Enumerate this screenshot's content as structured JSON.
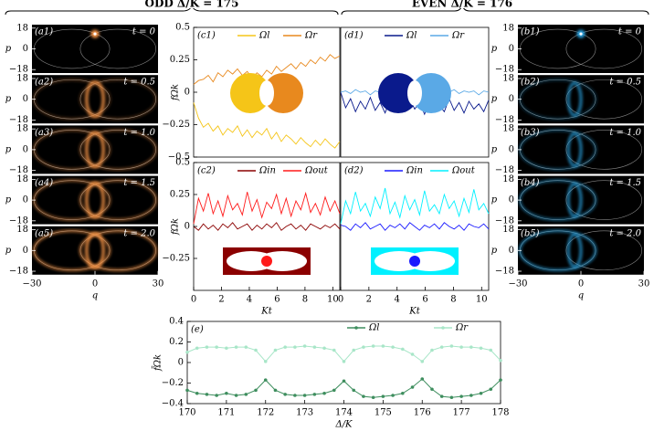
{
  "headers": {
    "odd": "ODD Δ/K = 175",
    "even": "EVEN Δ/K = 176"
  },
  "chart_data": [
    {
      "type": "phase",
      "label": "(a1)",
      "annotation": "t = 0",
      "ylabel": "p",
      "xlim": [
        -30,
        30
      ],
      "ylim": [
        -21,
        21
      ],
      "yticks": [
        {
          "value": -18,
          "label": "−18"
        },
        0,
        18
      ],
      "color": "#ff9a4a"
    },
    {
      "type": "phase",
      "label": "(a2)",
      "annotation": "t = 0.5",
      "ylabel": "p",
      "xlim": [
        -30,
        30
      ],
      "ylim": [
        -21,
        21
      ],
      "yticks": [
        {
          "value": -18,
          "label": "−18"
        },
        0,
        18
      ],
      "color": "#ff9a4a"
    },
    {
      "type": "phase",
      "label": "(a3)",
      "annotation": "t = 1.0",
      "ylabel": "p",
      "xlim": [
        -30,
        30
      ],
      "ylim": [
        -21,
        21
      ],
      "yticks": [
        {
          "value": -18,
          "label": "−18"
        },
        0,
        18
      ],
      "color": "#ff9a4a"
    },
    {
      "type": "phase",
      "label": "(a4)",
      "annotation": "t = 1.5",
      "ylabel": "p",
      "xlim": [
        -30,
        30
      ],
      "ylim": [
        -21,
        21
      ],
      "yticks": [
        {
          "value": -18,
          "label": "−18"
        },
        0,
        18
      ],
      "color": "#ff9a4a"
    },
    {
      "type": "phase",
      "label": "(a5)",
      "annotation": "t = 2.0",
      "ylabel": "p",
      "xlabel": "q",
      "xlim": [
        -30,
        30
      ],
      "ylim": [
        -21,
        21
      ],
      "yticks": [
        {
          "value": -18,
          "label": "−18"
        },
        0,
        18
      ],
      "xticks": [
        {
          "value": -30,
          "label": "−30"
        },
        0,
        30
      ],
      "color": "#ff9a4a"
    },
    {
      "type": "phase",
      "label": "(b1)",
      "annotation": "t = 0",
      "ylabel": "p",
      "xlim": [
        -30,
        30
      ],
      "ylim": [
        -21,
        21
      ],
      "yticks": [
        {
          "value": -18,
          "label": "−18"
        },
        0,
        18
      ],
      "color": "#2aa8e8"
    },
    {
      "type": "phase",
      "label": "(b2)",
      "annotation": "t = 0.5",
      "ylabel": "p",
      "xlim": [
        -30,
        30
      ],
      "ylim": [
        -21,
        21
      ],
      "yticks": [
        {
          "value": -18,
          "label": "−18"
        },
        0,
        18
      ],
      "color": "#2aa8e8"
    },
    {
      "type": "phase",
      "label": "(b3)",
      "annotation": "t = 1.0",
      "ylabel": "p",
      "xlim": [
        -30,
        30
      ],
      "ylim": [
        -21,
        21
      ],
      "yticks": [
        {
          "value": -18,
          "label": "−18"
        },
        0,
        18
      ],
      "color": "#2aa8e8"
    },
    {
      "type": "phase",
      "label": "(b4)",
      "annotation": "t = 1.5",
      "ylabel": "p",
      "xlim": [
        -30,
        30
      ],
      "ylim": [
        -21,
        21
      ],
      "yticks": [
        {
          "value": -18,
          "label": "−18"
        },
        0,
        18
      ],
      "color": "#2aa8e8"
    },
    {
      "type": "phase",
      "label": "(b5)",
      "annotation": "t = 2.0",
      "ylabel": "p",
      "xlabel": "q",
      "xlim": [
        -30,
        30
      ],
      "ylim": [
        -21,
        21
      ],
      "yticks": [
        {
          "value": -18,
          "label": "−18"
        },
        0,
        18
      ],
      "xticks": [
        {
          "value": -30,
          "label": "−30"
        },
        0,
        30
      ],
      "color": "#2aa8e8"
    },
    {
      "type": "line",
      "label": "(c1)",
      "ylabel": "fΩk",
      "xlim": [
        0,
        10.5
      ],
      "ylim": [
        -0.5,
        0.5
      ],
      "yticks": [
        {
          "value": -0.5,
          "label": "−0.5"
        },
        {
          "value": -0.25,
          "label": "−0.25"
        },
        0,
        0.25,
        0.5
      ],
      "x": [
        0,
        0.35,
        0.7,
        1.05,
        1.4,
        1.75,
        2.1,
        2.45,
        2.8,
        3.15,
        3.5,
        3.85,
        4.2,
        4.55,
        4.9,
        5.25,
        5.6,
        5.95,
        6.3,
        6.65,
        7,
        7.35,
        7.7,
        8.05,
        8.4,
        8.75,
        9.1,
        9.45,
        9.8,
        10.15,
        10.5
      ],
      "series": [
        {
          "name": "Ωl",
          "color": "#f5c518",
          "values": [
            -0.08,
            -0.2,
            -0.27,
            -0.24,
            -0.3,
            -0.26,
            -0.33,
            -0.28,
            -0.31,
            -0.26,
            -0.34,
            -0.29,
            -0.35,
            -0.3,
            -0.33,
            -0.28,
            -0.36,
            -0.31,
            -0.38,
            -0.33,
            -0.36,
            -0.4,
            -0.35,
            -0.39,
            -0.42,
            -0.37,
            -0.41,
            -0.36,
            -0.4,
            -0.43,
            -0.38
          ]
        },
        {
          "name": "Ωr",
          "color": "#e8891e",
          "values": [
            0.06,
            0.09,
            0.1,
            0.13,
            0.08,
            0.15,
            0.12,
            0.17,
            0.14,
            0.18,
            0.13,
            0.16,
            0.11,
            0.15,
            0.12,
            0.17,
            0.14,
            0.2,
            0.16,
            0.19,
            0.22,
            0.18,
            0.23,
            0.2,
            0.25,
            0.22,
            0.27,
            0.24,
            0.29,
            0.26,
            0.28
          ]
        }
      ]
    },
    {
      "type": "line",
      "label": "(d1)",
      "xlim": [
        0,
        10.5
      ],
      "ylim": [
        -0.5,
        0.5
      ],
      "x": [
        0,
        0.35,
        0.7,
        1.05,
        1.4,
        1.75,
        2.1,
        2.45,
        2.8,
        3.15,
        3.5,
        3.85,
        4.2,
        4.55,
        4.9,
        5.25,
        5.6,
        5.95,
        6.3,
        6.65,
        7,
        7.35,
        7.7,
        8.05,
        8.4,
        8.75,
        9.1,
        9.45,
        9.8,
        10.15,
        10.5
      ],
      "series": [
        {
          "name": "Ωl",
          "color": "#0a1a8c",
          "values": [
            0,
            -0.12,
            -0.05,
            -0.15,
            -0.07,
            -0.13,
            -0.04,
            -0.14,
            -0.08,
            -0.16,
            -0.06,
            -0.12,
            -0.09,
            -0.15,
            -0.05,
            -0.13,
            -0.08,
            -0.17,
            -0.06,
            -0.12,
            -0.1,
            -0.15,
            -0.05,
            -0.14,
            -0.08,
            -0.16,
            -0.07,
            -0.13,
            -0.09,
            -0.15,
            -0.06
          ]
        },
        {
          "name": "Ωr",
          "color": "#5aa9e6",
          "values": [
            0,
            0.01,
            -0.01,
            0.02,
            0,
            0.01,
            -0.02,
            0.01,
            0,
            0.02,
            -0.01,
            0.01,
            0,
            -0.01,
            0.02,
            0,
            0.01,
            -0.01,
            0.02,
            0,
            -0.01,
            0.01,
            0,
            0.02,
            -0.01,
            0.01,
            0,
            0.01,
            -0.02,
            0.01,
            0
          ]
        }
      ]
    },
    {
      "type": "line",
      "label": "(c2)",
      "ylabel": "fΩk",
      "xlabel": "Kt",
      "xlim": [
        0,
        10.5
      ],
      "ylim": [
        -0.5,
        0.5
      ],
      "yticks": [
        {
          "value": -0.25,
          "label": "−0.25"
        },
        0,
        0.25,
        0.5
      ],
      "xticks": [
        0,
        2,
        4,
        6,
        8,
        10
      ],
      "x": [
        0,
        0.35,
        0.7,
        1.05,
        1.4,
        1.75,
        2.1,
        2.45,
        2.8,
        3.15,
        3.5,
        3.85,
        4.2,
        4.55,
        4.9,
        5.25,
        5.6,
        5.95,
        6.3,
        6.65,
        7,
        7.35,
        7.7,
        8.05,
        8.4,
        8.75,
        9.1,
        9.45,
        9.8,
        10.15,
        10.5
      ],
      "series": [
        {
          "name": "Ωin",
          "color": "#8b0000",
          "values": [
            0,
            -0.03,
            0.02,
            -0.02,
            0.01,
            -0.03,
            0.02,
            -0.01,
            0.03,
            -0.02,
            0,
            0.02,
            -0.03,
            0.01,
            -0.02,
            0.02,
            -0.01,
            0.03,
            -0.03,
            0,
            0.02,
            -0.02,
            0.01,
            -0.03,
            0.02,
            0,
            -0.02,
            0.01,
            -0.01,
            0.02,
            -0.02
          ]
        },
        {
          "name": "Ωout",
          "color": "#ff1a1a",
          "values": [
            0.02,
            0.22,
            0.12,
            0.26,
            0.1,
            0.2,
            0.08,
            0.24,
            0.13,
            0.18,
            0.09,
            0.27,
            0.12,
            0.21,
            0.07,
            0.19,
            0.14,
            0.25,
            0.1,
            0.22,
            0.08,
            0.2,
            0.13,
            0.26,
            0.11,
            0.18,
            0.09,
            0.23,
            0.12,
            0.2,
            0.1
          ]
        }
      ]
    },
    {
      "type": "line",
      "label": "(d2)",
      "xlabel": "Kt",
      "xlim": [
        0,
        10.5
      ],
      "ylim": [
        -0.5,
        0.5
      ],
      "xticks": [
        0,
        2,
        4,
        6,
        8,
        10
      ],
      "x": [
        0,
        0.35,
        0.7,
        1.05,
        1.4,
        1.75,
        2.1,
        2.45,
        2.8,
        3.15,
        3.5,
        3.85,
        4.2,
        4.55,
        4.9,
        5.25,
        5.6,
        5.95,
        6.3,
        6.65,
        7,
        7.35,
        7.7,
        8.05,
        8.4,
        8.75,
        9.1,
        9.45,
        9.8,
        10.15,
        10.5
      ],
      "series": [
        {
          "name": "Ωin",
          "color": "#1a1aff",
          "values": [
            0.01,
            0,
            -0.03,
            0.02,
            -0.01,
            0.03,
            -0.02,
            0,
            0.02,
            -0.03,
            0.01,
            -0.01,
            0.02,
            -0.02,
            0.03,
            0,
            -0.03,
            0.01,
            -0.01,
            0.02,
            -0.02,
            0.03,
            0,
            -0.02,
            0.01,
            -0.03,
            0.02,
            0,
            -0.01,
            0.02,
            -0.02
          ]
        },
        {
          "name": "Ωout",
          "color": "#00f0ff",
          "values": [
            0.02,
            0.2,
            0.1,
            0.27,
            0.12,
            0.18,
            0.08,
            0.23,
            0.14,
            0.3,
            0.1,
            0.19,
            0.07,
            0.24,
            0.13,
            0.21,
            0.09,
            0.28,
            0.12,
            0.17,
            0.1,
            0.25,
            0.14,
            0.2,
            0.08,
            0.22,
            0.11,
            0.29,
            0.13,
            0.18,
            0.1
          ]
        }
      ]
    },
    {
      "type": "line",
      "label": "(e)",
      "ylabel": "f̄Ωk",
      "xlabel": "Δ/K",
      "markers": true,
      "xlim": [
        170,
        178
      ],
      "ylim": [
        -0.4,
        0.4
      ],
      "yticks": [
        {
          "value": -0.4,
          "label": "−0.4"
        },
        {
          "value": -0.2,
          "label": "−0.2"
        },
        0,
        0.2,
        0.4
      ],
      "xticks": [
        170,
        171,
        172,
        173,
        174,
        175,
        176,
        177,
        178
      ],
      "x": [
        170,
        170.25,
        170.5,
        170.75,
        171,
        171.25,
        171.5,
        171.75,
        172,
        172.25,
        172.5,
        172.75,
        173,
        173.25,
        173.5,
        173.75,
        174,
        174.25,
        174.5,
        174.75,
        175,
        175.25,
        175.5,
        175.75,
        176,
        176.25,
        176.5,
        176.75,
        177,
        177.25,
        177.5,
        177.75,
        178
      ],
      "series": [
        {
          "name": "Ωl",
          "color": "#3e8e5e",
          "values": [
            -0.27,
            -0.3,
            -0.31,
            -0.32,
            -0.3,
            -0.32,
            -0.31,
            -0.27,
            -0.17,
            -0.27,
            -0.31,
            -0.32,
            -0.32,
            -0.31,
            -0.3,
            -0.27,
            -0.18,
            -0.27,
            -0.33,
            -0.34,
            -0.33,
            -0.32,
            -0.3,
            -0.24,
            -0.16,
            -0.26,
            -0.33,
            -0.34,
            -0.33,
            -0.32,
            -0.3,
            -0.26,
            -0.17
          ]
        },
        {
          "name": "Ωr",
          "color": "#a8e6c8",
          "values": [
            0.1,
            0.14,
            0.15,
            0.15,
            0.14,
            0.15,
            0.15,
            0.12,
            0.01,
            0.12,
            0.15,
            0.15,
            0.16,
            0.15,
            0.14,
            0.12,
            0.01,
            0.12,
            0.15,
            0.16,
            0.16,
            0.15,
            0.13,
            0.08,
            0.01,
            0.12,
            0.15,
            0.16,
            0.15,
            0.15,
            0.14,
            0.12,
            0.02
          ]
        }
      ]
    }
  ]
}
